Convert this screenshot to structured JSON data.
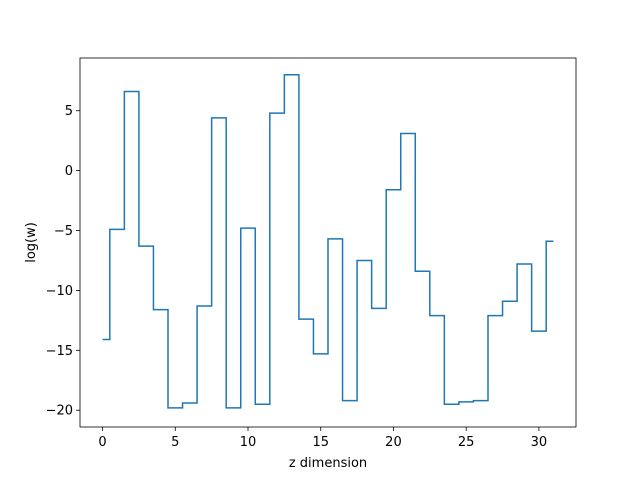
{
  "chart_data": {
    "type": "line",
    "drawstyle": "steps-mid",
    "title": "",
    "xlabel": "z dimension",
    "ylabel": "log(w)",
    "xlim": [
      -1.55,
      32.55
    ],
    "ylim": [
      -21.4,
      9.4
    ],
    "grid": false,
    "legend": "none",
    "x_ticks": [
      0,
      5,
      10,
      15,
      20,
      25,
      30
    ],
    "y_ticks": [
      -20,
      -15,
      -10,
      -5,
      0,
      5
    ],
    "x_tick_labels": [
      "0",
      "5",
      "10",
      "15",
      "20",
      "25",
      "30"
    ],
    "y_tick_labels": [
      "−20",
      "−15",
      "−10",
      "−5",
      "0",
      "5"
    ],
    "series": [
      {
        "color": "#1f77b4",
        "x": [
          0,
          1,
          2,
          3,
          4,
          5,
          6,
          7,
          8,
          9,
          10,
          11,
          12,
          13,
          14,
          15,
          16,
          17,
          18,
          19,
          20,
          21,
          22,
          23,
          24,
          25,
          26,
          27,
          28,
          29,
          30,
          31
        ],
        "values": [
          -14.1,
          -4.9,
          6.6,
          -6.3,
          -11.6,
          -19.8,
          -19.4,
          -11.3,
          4.4,
          -19.8,
          -4.8,
          -19.5,
          4.8,
          8.0,
          -12.4,
          -15.3,
          -5.7,
          -19.2,
          -7.5,
          -11.5,
          -1.6,
          3.1,
          -8.4,
          -12.1,
          -19.5,
          -19.3,
          -19.2,
          -12.1,
          -10.9,
          -7.8,
          -13.4,
          -5.9
        ]
      }
    ]
  }
}
